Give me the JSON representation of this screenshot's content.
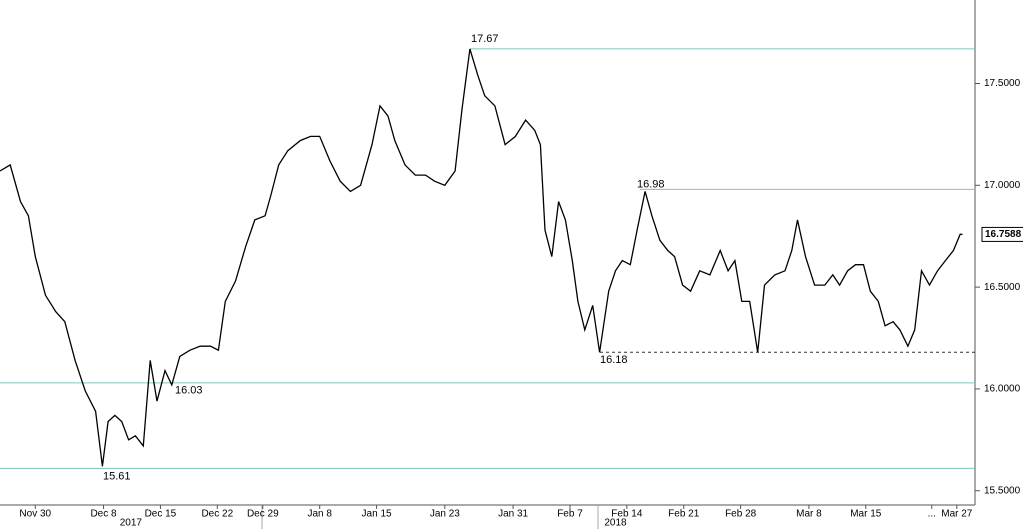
{
  "chart_data": {
    "type": "line",
    "x": [
      -3.1,
      -2.2,
      -1.3,
      -0.6,
      0,
      0.9,
      1.8,
      2.6,
      3.5,
      4.4,
      5.3,
      5.9,
      6.4,
      7.0,
      7.6,
      8.2,
      8.8,
      9.5,
      10.1,
      10.7,
      11.4,
      12.0,
      12.7,
      13.6,
      14.5,
      15.4,
      16.1,
      16.7,
      17.6,
      18.5,
      19.3,
      20.2,
      20.7,
      21.4,
      22.2,
      23.3,
      24.2,
      25.0,
      25.9,
      26.8,
      27.7,
      28.6,
      29.6,
      30.3,
      31.0,
      31.6,
      32.5,
      33.4,
      34.3,
      35.1,
      36.0,
      36.9,
      37.5,
      38.2,
      38.9,
      39.5,
      40.4,
      41.3,
      42.2,
      43.1,
      43.9,
      44.4,
      44.8,
      45.4,
      46.0,
      46.6,
      47.2,
      47.7,
      48.3,
      49.0,
      49.6,
      50.4,
      51.0,
      51.6,
      52.3,
      52.9,
      53.6,
      54.2,
      54.9,
      55.6,
      56.2,
      56.9,
      57.6,
      58.4,
      59.3,
      60.2,
      60.9,
      61.5,
      62.1,
      62.8,
      63.5,
      64.1,
      65.0,
      65.9,
      66.5,
      67.0,
      67.7,
      68.5,
      69.4,
      70.1,
      70.7,
      71.4,
      72.1,
      72.8,
      73.4,
      74.1,
      74.7,
      75.4,
      76.0,
      76.7,
      77.3,
      77.9,
      78.6,
      79.3,
      80.0,
      80.7,
      81.3,
      81.5
    ],
    "series": [
      {
        "color": "#000000",
        "values": [
          17.07,
          17.1,
          16.92,
          16.85,
          16.65,
          16.46,
          16.38,
          16.33,
          16.14,
          15.99,
          15.89,
          15.62,
          15.84,
          15.87,
          15.84,
          15.75,
          15.77,
          15.72,
          16.14,
          15.94,
          16.09,
          16.02,
          16.16,
          16.19,
          16.21,
          16.21,
          16.19,
          16.43,
          16.53,
          16.7,
          16.83,
          16.85,
          16.95,
          17.1,
          17.17,
          17.22,
          17.24,
          17.24,
          17.12,
          17.02,
          16.97,
          17.0,
          17.2,
          17.39,
          17.34,
          17.22,
          17.1,
          17.05,
          17.05,
          17.02,
          17.0,
          17.07,
          17.37,
          17.67,
          17.54,
          17.44,
          17.39,
          17.2,
          17.24,
          17.32,
          17.27,
          17.2,
          16.78,
          16.65,
          16.92,
          16.83,
          16.63,
          16.43,
          16.29,
          16.41,
          16.18,
          16.48,
          16.58,
          16.63,
          16.61,
          16.78,
          16.97,
          16.85,
          16.73,
          16.68,
          16.65,
          16.51,
          16.48,
          16.58,
          16.56,
          16.68,
          16.58,
          16.63,
          16.43,
          16.43,
          16.18,
          16.51,
          16.56,
          16.58,
          16.68,
          16.83,
          16.65,
          16.51,
          16.51,
          16.56,
          16.51,
          16.58,
          16.61,
          16.61,
          16.48,
          16.43,
          16.31,
          16.33,
          16.29,
          16.21,
          16.29,
          16.58,
          16.51,
          16.58,
          16.63,
          16.68,
          16.76,
          16.7588
        ]
      }
    ],
    "xlim": [
      -3.1,
      82.6
    ],
    "xticks": [
      {
        "value": 0,
        "label": "Nov 30"
      },
      {
        "value": 6,
        "label": "Dec 8"
      },
      {
        "value": 11,
        "label": "Dec 15"
      },
      {
        "value": 16,
        "label": "Dec 22"
      },
      {
        "value": 20,
        "label": "Dec 29"
      },
      {
        "value": 25,
        "label": "Jan 8"
      },
      {
        "value": 30,
        "label": "Jan 15"
      },
      {
        "value": 36,
        "label": "Jan 23"
      },
      {
        "value": 42,
        "label": "Jan 31"
      },
      {
        "value": 47,
        "label": "Feb 7"
      },
      {
        "value": 52,
        "label": "Feb 14"
      },
      {
        "value": 57,
        "label": "Feb 21"
      },
      {
        "value": 62,
        "label": "Feb 28"
      },
      {
        "value": 68,
        "label": "Mar 8"
      },
      {
        "value": 73,
        "label": "Mar 15"
      },
      {
        "value": 78.8,
        "label": "..."
      },
      {
        "value": 81,
        "label": "Mar 27"
      }
    ],
    "year_labels": [
      {
        "value": 8.4,
        "label": "2017"
      },
      {
        "value": 51,
        "label": "2018"
      }
    ],
    "ylim": [
      15.43,
      17.91
    ],
    "yticks": [
      {
        "value": 15.5,
        "label": "15.5000"
      },
      {
        "value": 16,
        "label": "16.0000"
      },
      {
        "value": 16.5,
        "label": "16.5000"
      },
      {
        "value": 17,
        "label": "17.0000"
      },
      {
        "value": 17.5,
        "label": "17.5000"
      }
    ],
    "levels": [
      17.67,
      16.98,
      16.03,
      15.61
    ],
    "level_color": "#7cc7bd",
    "dashed_levels": [
      16.18
    ],
    "grid": false
  }
}
